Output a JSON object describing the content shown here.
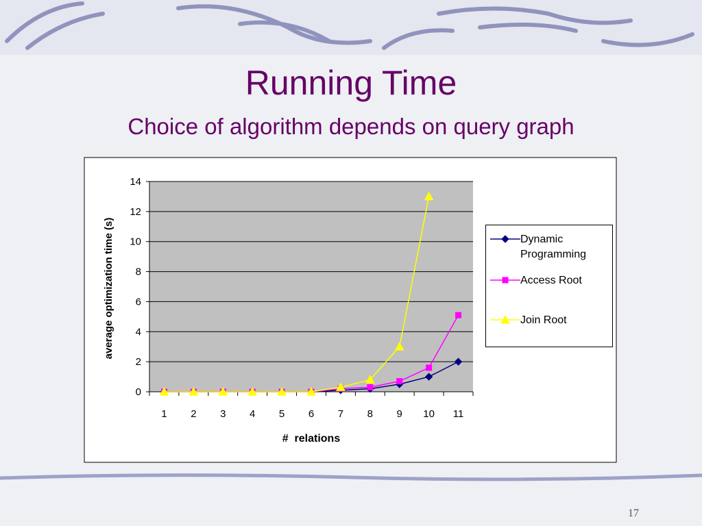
{
  "slide": {
    "title": "Running Time",
    "subtitle": "Choice of algorithm depends on query graph",
    "page_number": "17"
  },
  "chart_data": {
    "type": "line",
    "x_label": "#  relations",
    "y_label": "average optimization time (s)",
    "categories": [
      1,
      2,
      3,
      4,
      5,
      6,
      7,
      8,
      9,
      10,
      11
    ],
    "series": [
      {
        "name": "Dynamic Programming",
        "color": "#000080",
        "marker": "diamond",
        "values": [
          0,
          0,
          0,
          0,
          0,
          0,
          0.1,
          0.2,
          0.5,
          1.0,
          2.0
        ]
      },
      {
        "name": "Access Root",
        "color": "#ff00ff",
        "marker": "square",
        "values": [
          0,
          0,
          0,
          0,
          0,
          0,
          0.2,
          0.3,
          0.7,
          1.6,
          5.1
        ]
      },
      {
        "name": "Join Root",
        "color": "#ffff00",
        "marker": "triangle",
        "values": [
          0,
          0,
          0,
          0,
          0,
          0,
          0.3,
          0.8,
          3.0,
          13.0,
          null
        ]
      }
    ],
    "ylim": [
      0,
      14
    ],
    "yticks": [
      0,
      2,
      4,
      6,
      8,
      10,
      12,
      14
    ],
    "grid": true,
    "legend": "right"
  }
}
